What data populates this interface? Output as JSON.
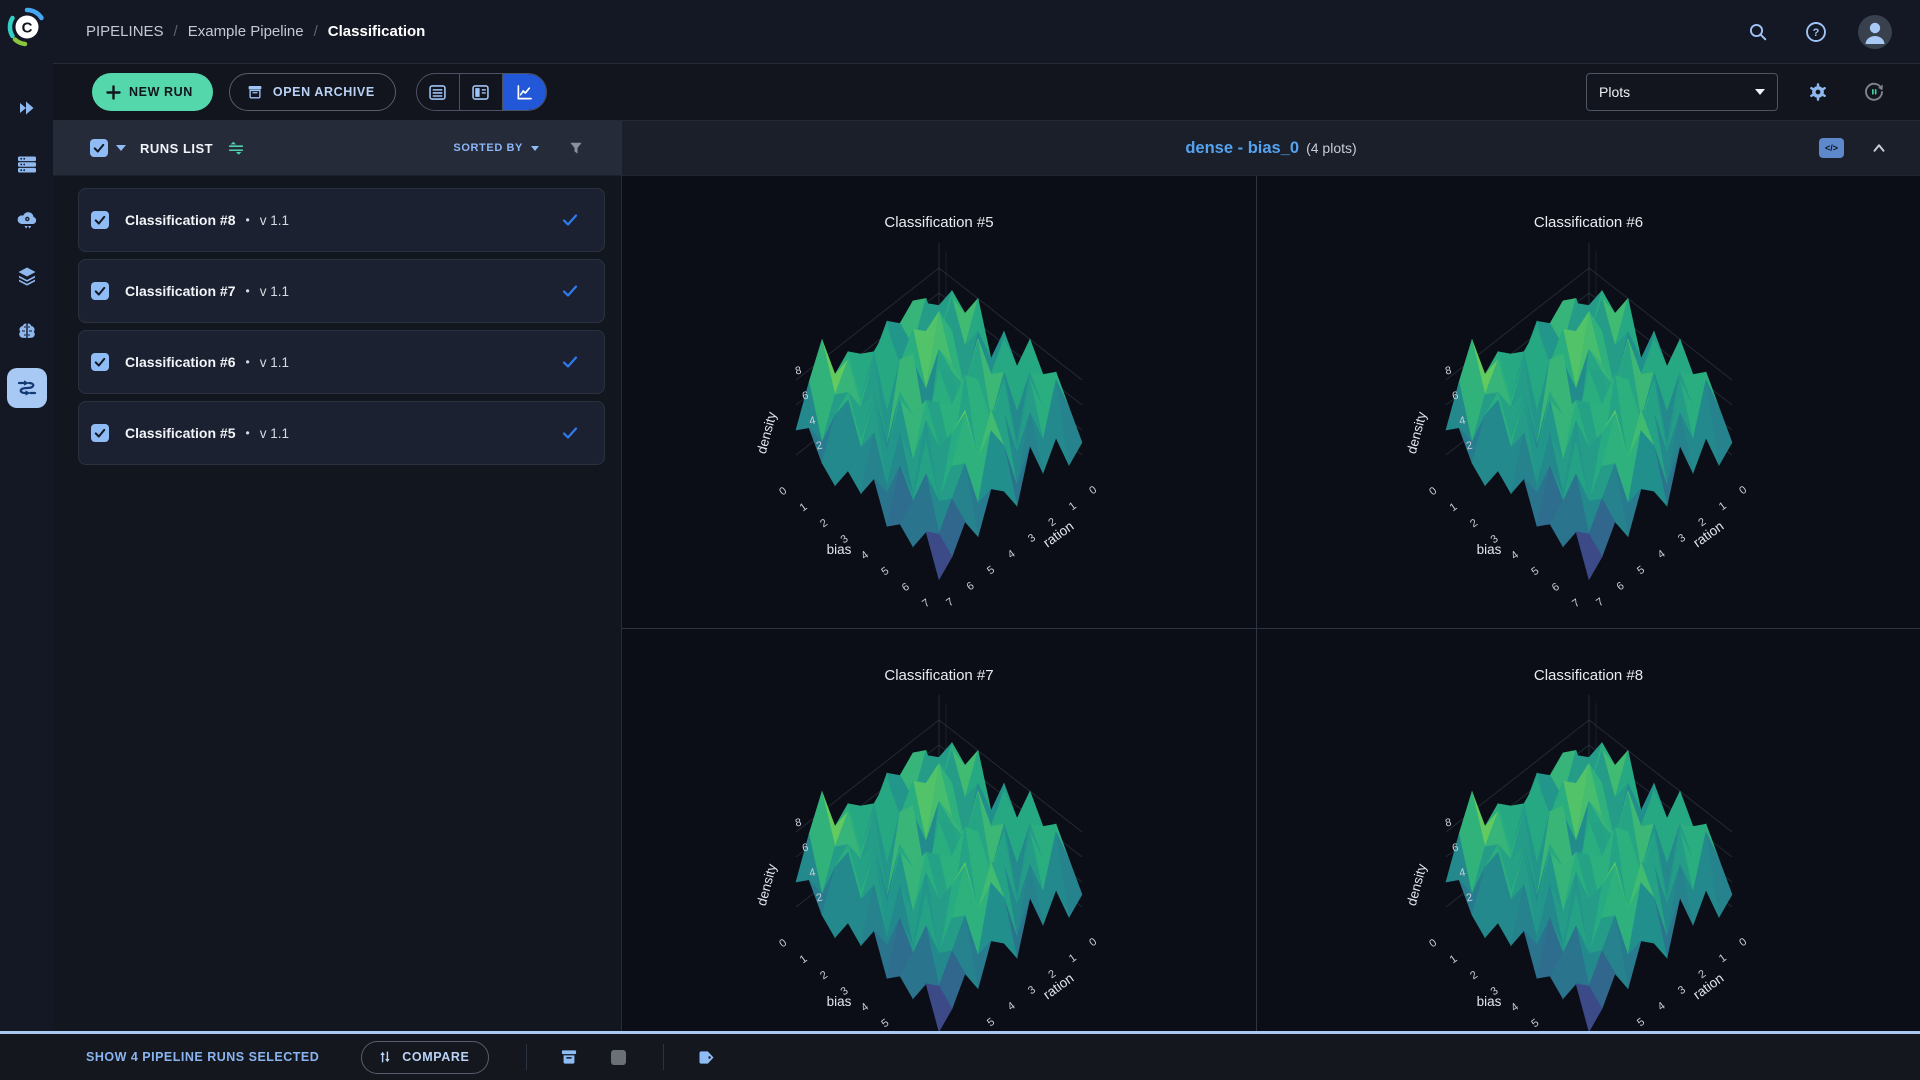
{
  "topbar": {
    "breadcrumb": [
      "PIPELINES",
      "Example Pipeline",
      "Classification"
    ],
    "separator": "/",
    "icons": [
      "search-icon",
      "help-icon",
      "avatar"
    ]
  },
  "sidebar": {
    "icons": [
      "clearml-logo",
      "projects-icon",
      "workers-queues-icon",
      "model-endpoints-icon",
      "datasets-icon",
      "models-icon",
      "pipelines-icon"
    ],
    "active_item": "pipelines"
  },
  "toolbar": {
    "new_run_label": "NEW RUN",
    "open_archive_label": "OPEN ARCHIVE",
    "view_modes": [
      "table-view-icon",
      "split-view-icon",
      "plots-view-icon"
    ],
    "active_view": "plots-view",
    "plots_dropdown_value": "Plots",
    "icons": [
      "gear-icon",
      "auto-refresh-icon"
    ]
  },
  "runs_panel": {
    "title": "RUNS LIST",
    "sorted_by_label": "SORTED BY",
    "bullet": "•",
    "runs": [
      {
        "name": "Classification #8",
        "version": "v 1.1",
        "selected": true
      },
      {
        "name": "Classification #7",
        "version": "v 1.1",
        "selected": true
      },
      {
        "name": "Classification #6",
        "version": "v 1.1",
        "selected": true
      },
      {
        "name": "Classification #5",
        "version": "v 1.1",
        "selected": true
      }
    ]
  },
  "plots_panel": {
    "group_title": "dense - bias_0",
    "group_count": "(4 plots)",
    "embed_code_label": "</>",
    "plots": [
      {
        "title": "Classification #5"
      },
      {
        "title": "Classification #6"
      },
      {
        "title": "Classification #7"
      },
      {
        "title": "Classification #8"
      }
    ]
  },
  "footer": {
    "selection_text": "SHOW 4 PIPELINE RUNS SELECTED",
    "compare_label": "COMPARE",
    "icons": [
      "compare-icon",
      "archive-icon",
      "disabled-square-icon",
      "tag-icon"
    ]
  },
  "colors": {
    "accent_green": "#54d7aa",
    "active_blue": "#2257d8",
    "link_blue": "#55a3f0",
    "light_blue": "#8fbcf5",
    "check_blue": "#2e7cf0",
    "footer_line": "#a9c7f0"
  },
  "chart_data": {
    "type": "surface",
    "group_title": "dense - bias_0",
    "plot_titles": [
      "Classification #5",
      "Classification #6",
      "Classification #7",
      "Classification #8"
    ],
    "xlabel": "bias",
    "ylabel": "ration",
    "zlabel": "density",
    "x_ticks": [
      0,
      1,
      2,
      3,
      4,
      5,
      6,
      7
    ],
    "y_ticks": [
      0,
      1,
      2,
      3,
      4,
      5,
      6,
      7
    ],
    "z_ticks": [
      2,
      4,
      6,
      8
    ],
    "zlim": [
      0,
      10
    ],
    "colorscale": "viridis",
    "grid": true,
    "z": [
      [
        5,
        6,
        7,
        6,
        7,
        5,
        6,
        7,
        6,
        9.6,
        7,
        4
      ],
      [
        7,
        4,
        8,
        5,
        3,
        8,
        7,
        4,
        8,
        6,
        3,
        5
      ],
      [
        6,
        8,
        2,
        7,
        8,
        6,
        3,
        8,
        5,
        7,
        6,
        3
      ],
      [
        8,
        5,
        7,
        9.4,
        4,
        7,
        8,
        2,
        7,
        4,
        8,
        2
      ],
      [
        4,
        7,
        3,
        6,
        8,
        0.4,
        9.3,
        7,
        3,
        8,
        5,
        4
      ],
      [
        7,
        2,
        8,
        5,
        7,
        8,
        4,
        6,
        8,
        2,
        7,
        3
      ],
      [
        5,
        8,
        6,
        9.5,
        2,
        6,
        7,
        8,
        4,
        7,
        3,
        5
      ],
      [
        8,
        3,
        7,
        4,
        8,
        9.2,
        3,
        5,
        8,
        3,
        6,
        2
      ],
      [
        6,
        7,
        2,
        8,
        5,
        3,
        8,
        7,
        2,
        8,
        4,
        3
      ],
      [
        7,
        5,
        8,
        3,
        7,
        8,
        5,
        9.4,
        6,
        4,
        7,
        2
      ],
      [
        5,
        8,
        4,
        7,
        2,
        6,
        8,
        3,
        7,
        5,
        3,
        4
      ],
      [
        3,
        2,
        5,
        3,
        6,
        2,
        4,
        5,
        2,
        4,
        2,
        1
      ]
    ]
  }
}
